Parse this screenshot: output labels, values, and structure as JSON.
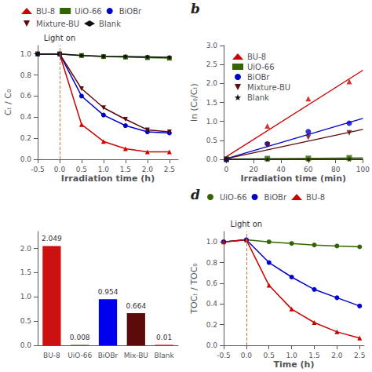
{
  "chart_data": [
    {
      "type": "line",
      "xlabel": "Irradiation time (h)",
      "ylabel": "Cₜ / C₀",
      "annotations": [
        {
          "text": "Light on",
          "x": 0.0,
          "line_style": "dashed",
          "color": "#c87941"
        }
      ],
      "series": [
        {
          "name": "BU-8",
          "color": "#cc0000",
          "marker": "triangle",
          "x": [
            -0.5,
            0.0,
            0.5,
            1.0,
            1.5,
            2.0,
            2.5
          ],
          "values": [
            1.0,
            1.0,
            0.33,
            0.17,
            0.1,
            0.07,
            0.07
          ]
        },
        {
          "name": "UiO-66",
          "color": "#336600",
          "marker": "square",
          "x": [
            -0.5,
            0.0,
            0.5,
            1.0,
            1.5,
            2.0,
            2.5
          ],
          "values": [
            1.0,
            1.0,
            0.985,
            0.975,
            0.97,
            0.965,
            0.96
          ]
        },
        {
          "name": "BiOBr",
          "color": "#0000cc",
          "marker": "circle",
          "x": [
            -0.5,
            0.0,
            0.5,
            1.0,
            1.5,
            2.0,
            2.5
          ],
          "values": [
            1.0,
            1.0,
            0.6,
            0.42,
            0.32,
            0.26,
            0.25
          ]
        },
        {
          "name": "Mixture-BU",
          "color": "#5c0a0a",
          "marker": "triangle_down",
          "x": [
            -0.5,
            0.0,
            0.5,
            1.0,
            1.5,
            2.0,
            2.5
          ],
          "values": [
            1.0,
            1.0,
            0.67,
            0.49,
            0.38,
            0.28,
            0.26
          ]
        },
        {
          "name": "Blank",
          "color": "#111111",
          "marker": "diamond",
          "x": [
            -0.5,
            0.0,
            0.5,
            1.0,
            1.5,
            2.0,
            2.5
          ],
          "values": [
            1.0,
            1.0,
            0.985,
            0.978,
            0.975,
            0.972,
            0.968
          ]
        }
      ],
      "xlim": [
        -0.5,
        2.7
      ],
      "ylim": [
        0.0,
        1.08
      ],
      "xticks": [
        -0.5,
        {
          "value": 0.0,
          "label": "0.0"
        },
        0.5,
        {
          "value": 1.0,
          "label": "1.0"
        },
        1.5,
        {
          "value": 2.0,
          "label": "2.0"
        },
        2.5
      ],
      "yticks": [
        {
          "value": 0.0,
          "label": "0.0"
        },
        0.2,
        0.4,
        0.6,
        0.8,
        {
          "value": 1.0,
          "label": "1.0"
        }
      ],
      "legend": "top",
      "grid": false
    },
    {
      "type": "scatter",
      "panel_label": "b",
      "xlabel": "Irradiation time (min)",
      "ylabel": "ln (C₀/Cₜ)",
      "series": [
        {
          "name": "BU-8",
          "color": "#cc0000",
          "marker": "triangle",
          "x": [
            0,
            30,
            60,
            90
          ],
          "values": [
            0.0,
            0.88,
            1.6,
            2.05
          ],
          "fit": {
            "x": [
              0,
              100
            ],
            "values": [
              0.07,
              2.348
            ]
          }
        },
        {
          "name": "UiO-66",
          "color": "#336600",
          "marker": "square",
          "x": [
            0,
            30,
            60,
            90
          ],
          "values": [
            0.0,
            0.02,
            0.025,
            0.04
          ],
          "fit": {
            "x": [
              0,
              100
            ],
            "values": [
              0.005,
              0.038
            ]
          }
        },
        {
          "name": "BiOBr",
          "color": "#0000cc",
          "marker": "circle",
          "x": [
            0,
            30,
            60,
            90
          ],
          "values": [
            0.0,
            0.41,
            0.73,
            0.95
          ],
          "fit": {
            "x": [
              0,
              100
            ],
            "values": [
              0.02,
              1.078
            ]
          }
        },
        {
          "name": "Mixture-BU",
          "color": "#5c0a0a",
          "marker": "triangle_down",
          "x": [
            0,
            30,
            60,
            90
          ],
          "values": [
            0.0,
            0.38,
            0.58,
            0.7
          ],
          "fit": {
            "x": [
              0,
              100
            ],
            "values": [
              0.02,
              0.789
            ]
          }
        },
        {
          "name": "Blank",
          "color": "#111111",
          "marker": "star",
          "x": [
            0,
            30,
            60,
            90
          ],
          "values": [
            0.0,
            0.0,
            0.0,
            0.0
          ],
          "fit": {
            "x": [
              0,
              100
            ],
            "values": [
              0.0,
              0.0
            ]
          }
        }
      ],
      "xlim": [
        -2,
        100
      ],
      "ylim": [
        0.0,
        3.0
      ],
      "xticks": [
        0,
        20,
        40,
        60,
        80,
        100
      ],
      "yticks": [
        {
          "value": 0.0,
          "label": "0.0"
        },
        0.5,
        {
          "value": 1.0,
          "label": "1.0"
        },
        1.5,
        {
          "value": 2.0,
          "label": "2.0"
        },
        2.5,
        {
          "value": 3.0,
          "label": "3.0"
        }
      ],
      "legend": "upper left",
      "grid": false
    },
    {
      "type": "bar",
      "categories": [
        "BU-8",
        "UiO-66",
        "BiOBr",
        "Mix-BU",
        "Blank"
      ],
      "values": [
        2.049,
        0.008,
        0.954,
        0.664,
        0.01
      ],
      "colors": [
        "#cc1111",
        "#336600",
        "#0000ee",
        "#5c0a0a",
        "#cc1111"
      ],
      "data_labels": true,
      "ylim": [
        0,
        2.35
      ],
      "yticks": [
        {
          "value": 0.0,
          "label": "0.0"
        },
        0.5,
        {
          "value": 1.0,
          "label": "1.0"
        },
        1.5,
        {
          "value": 2.0,
          "label": "2.0"
        }
      ],
      "grid": false
    },
    {
      "type": "line",
      "panel_label": "d",
      "xlabel": "Time (h)",
      "ylabel": "TOCₜ / TOC₀",
      "annotations": [
        {
          "text": "Light on",
          "x": 0.0,
          "line_style": "dashed",
          "color": "#c87941"
        }
      ],
      "series": [
        {
          "name": "UiO-66",
          "color": "#336600",
          "marker": "circle",
          "x": [
            -0.5,
            0.0,
            0.5,
            1.0,
            1.5,
            2.0,
            2.5
          ],
          "values": [
            1.0,
            1.02,
            1.0,
            0.985,
            0.97,
            0.96,
            0.952
          ]
        },
        {
          "name": "BiOBr",
          "color": "#0000cc",
          "marker": "circle",
          "x": [
            -0.5,
            0.0,
            0.5,
            1.0,
            1.5,
            2.0,
            2.5
          ],
          "values": [
            1.0,
            1.02,
            0.8,
            0.66,
            0.54,
            0.46,
            0.38
          ]
        },
        {
          "name": "BU-8",
          "color": "#cc0000",
          "marker": "triangle",
          "x": [
            -0.5,
            0.0,
            0.5,
            1.0,
            1.5,
            2.0,
            2.5
          ],
          "values": [
            1.0,
            1.02,
            0.58,
            0.35,
            0.22,
            0.13,
            0.07
          ]
        }
      ],
      "xlim": [
        -0.5,
        2.6
      ],
      "ylim": [
        0.0,
        1.1
      ],
      "xticks": [
        -0.5,
        {
          "value": 0.0,
          "label": "0.0"
        },
        0.5,
        {
          "value": 1.0,
          "label": "1.0"
        },
        1.5,
        {
          "value": 2.0,
          "label": "2.0"
        },
        2.5
      ],
      "yticks": [
        {
          "value": 0.0,
          "label": "0.0"
        },
        0.2,
        0.4,
        0.6,
        0.8,
        {
          "value": 1.0,
          "label": "1.0"
        }
      ],
      "legend": "top",
      "grid": false
    }
  ]
}
